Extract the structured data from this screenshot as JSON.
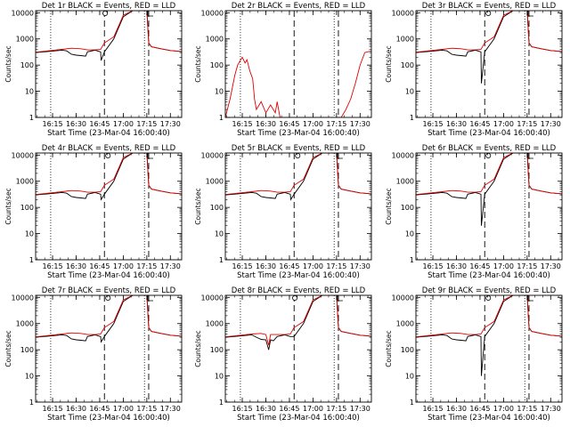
{
  "figure": {
    "panel_title_suffix": " BLACK = Events, RED = LLD",
    "xlabel": "Start Time (23-Mar-04 16:00:40)",
    "ylabel": "Counts/sec",
    "colors": {
      "events": "#000000",
      "lld": "#e00000",
      "background": "#ffffff"
    }
  },
  "chart_data": {
    "type": "line",
    "yscale": "log",
    "ylim": [
      1,
      12000
    ],
    "xlim": [
      16.07,
      17.62
    ],
    "yticks": [
      1,
      10,
      100,
      1000,
      10000
    ],
    "ytick_labels": [
      "1",
      "10",
      "100",
      "1000",
      "10000"
    ],
    "xticks": [
      16.25,
      16.5,
      16.75,
      17.0,
      17.25,
      17.5
    ],
    "xtick_labels": [
      "16:15",
      "16:30",
      "16:45",
      "17:00",
      "17:15",
      "17:30"
    ],
    "dotted_lines_x": [
      16.23,
      17.225
    ],
    "dashed_lines_x": [
      16.8,
      17.27
    ],
    "legend": [
      "Events",
      "LLD"
    ],
    "panels": [
      {
        "label": "Det 1r",
        "gap_marks": [
          16.77,
          17.26
        ],
        "series": [
          {
            "name": "Events",
            "x": [
              16.07,
              16.2,
              16.35,
              16.4,
              16.45,
              16.5,
              16.55,
              16.6,
              16.62,
              16.7,
              16.76,
              16.765,
              16.8,
              16.9,
              17.0,
              17.1,
              17.25,
              17.27,
              17.3,
              17.4,
              17.5,
              17.62
            ],
            "y": [
              300,
              330,
              370,
              350,
              260,
              240,
              230,
              220,
              320,
              370,
              320,
              150,
              320,
              1000,
              7000,
              12000,
              12000,
              700,
              500,
              420,
              360,
              330
            ]
          },
          {
            "name": "LLD",
            "x": [
              16.07,
              16.2,
              16.35,
              16.45,
              16.55,
              16.62,
              16.7,
              16.76,
              16.8,
              16.9,
              17.0,
              17.1,
              17.25,
              17.27,
              17.3,
              17.4,
              17.5,
              17.62
            ],
            "y": [
              310,
              350,
              400,
              440,
              420,
              380,
              380,
              400,
              700,
              1200,
              8000,
              12000,
              12000,
              700,
              500,
              420,
              360,
              330
            ]
          }
        ]
      },
      {
        "label": "Det 2r",
        "gap_marks": [],
        "series": [
          {
            "name": "LLD",
            "x": [
              16.07,
              16.12,
              16.17,
              16.2,
              16.25,
              16.28,
              16.3,
              16.33,
              16.36,
              16.38,
              16.4,
              16.45,
              16.5,
              16.55,
              16.6,
              16.62,
              16.65,
              16.7,
              17.3,
              17.35,
              17.4,
              17.45,
              17.5,
              17.55,
              17.62
            ],
            "y": [
              1,
              5,
              40,
              100,
              200,
              120,
              160,
              60,
              30,
              5,
              2,
              4,
              1.5,
              3,
              1.5,
              4,
              1,
              1,
              1,
              2,
              5,
              20,
              100,
              300,
              350
            ]
          }
        ]
      },
      {
        "label": "Det 3r",
        "gap_marks": [
          16.8,
          17.26
        ],
        "series": [
          {
            "name": "Events",
            "x": [
              16.07,
              16.2,
              16.35,
              16.4,
              16.45,
              16.5,
              16.55,
              16.6,
              16.62,
              16.7,
              16.76,
              16.765,
              16.8,
              16.9,
              17.0,
              17.1,
              17.25,
              17.27,
              17.3,
              17.4,
              17.5,
              17.62
            ],
            "y": [
              300,
              330,
              370,
              350,
              260,
              240,
              230,
              220,
              320,
              370,
              320,
              20,
              320,
              1000,
              7000,
              12000,
              12000,
              700,
              500,
              420,
              360,
              330
            ]
          },
          {
            "name": "LLD",
            "x": [
              16.07,
              16.2,
              16.35,
              16.45,
              16.55,
              16.62,
              16.7,
              16.76,
              16.8,
              16.9,
              17.0,
              17.1,
              17.25,
              17.27,
              17.3,
              17.4,
              17.5,
              17.62
            ],
            "y": [
              310,
              350,
              400,
              440,
              420,
              380,
              380,
              400,
              700,
              1200,
              8000,
              12000,
              12000,
              700,
              500,
              420,
              360,
              330
            ]
          }
        ]
      },
      {
        "label": "Det 4r",
        "gap_marks": [
          16.8,
          17.26
        ],
        "series": [
          {
            "name": "Events",
            "x": [
              16.07,
              16.2,
              16.35,
              16.4,
              16.45,
              16.5,
              16.55,
              16.6,
              16.62,
              16.7,
              16.76,
              16.765,
              16.8,
              16.9,
              17.0,
              17.1,
              17.25,
              17.27,
              17.3,
              17.4,
              17.5,
              17.62
            ],
            "y": [
              300,
              330,
              370,
              350,
              260,
              240,
              230,
              220,
              320,
              370,
              320,
              200,
              320,
              1000,
              7000,
              12000,
              12000,
              700,
              500,
              420,
              360,
              330
            ]
          },
          {
            "name": "LLD",
            "x": [
              16.07,
              16.2,
              16.35,
              16.45,
              16.55,
              16.62,
              16.7,
              16.76,
              16.8,
              16.9,
              17.0,
              17.1,
              17.25,
              17.27,
              17.3,
              17.4,
              17.5,
              17.62
            ],
            "y": [
              310,
              350,
              400,
              440,
              420,
              380,
              380,
              400,
              700,
              1200,
              8000,
              12000,
              12000,
              700,
              500,
              420,
              360,
              330
            ]
          }
        ]
      },
      {
        "label": "Det 5r",
        "gap_marks": [
          16.8,
          17.26
        ],
        "series": [
          {
            "name": "Events",
            "x": [
              16.07,
              16.2,
              16.35,
              16.4,
              16.45,
              16.5,
              16.55,
              16.6,
              16.62,
              16.7,
              16.76,
              16.765,
              16.8,
              16.9,
              17.0,
              17.1,
              17.25,
              17.27,
              17.3,
              17.4,
              17.5,
              17.62
            ],
            "y": [
              300,
              330,
              370,
              350,
              260,
              240,
              230,
              220,
              320,
              370,
              320,
              200,
              320,
              1000,
              7000,
              12000,
              12000,
              700,
              500,
              420,
              360,
              330
            ]
          },
          {
            "name": "LLD",
            "x": [
              16.07,
              16.2,
              16.35,
              16.45,
              16.55,
              16.62,
              16.7,
              16.76,
              16.8,
              16.9,
              17.0,
              17.1,
              17.25,
              17.27,
              17.3,
              17.4,
              17.5,
              17.62
            ],
            "y": [
              310,
              350,
              400,
              440,
              420,
              380,
              380,
              400,
              700,
              1200,
              8000,
              12000,
              12000,
              700,
              500,
              420,
              360,
              330
            ]
          }
        ]
      },
      {
        "label": "Det 6r",
        "gap_marks": [
          16.8,
          17.26
        ],
        "series": [
          {
            "name": "Events",
            "x": [
              16.07,
              16.2,
              16.35,
              16.4,
              16.45,
              16.5,
              16.55,
              16.6,
              16.62,
              16.7,
              16.76,
              16.765,
              16.8,
              16.9,
              17.0,
              17.1,
              17.25,
              17.27,
              17.3,
              17.4,
              17.5,
              17.62
            ],
            "y": [
              300,
              330,
              370,
              350,
              260,
              240,
              230,
              220,
              320,
              370,
              320,
              20,
              320,
              1000,
              7000,
              12000,
              12000,
              700,
              500,
              420,
              360,
              330
            ]
          },
          {
            "name": "LLD",
            "x": [
              16.07,
              16.2,
              16.35,
              16.45,
              16.55,
              16.62,
              16.7,
              16.76,
              16.8,
              16.9,
              17.0,
              17.1,
              17.25,
              17.27,
              17.3,
              17.4,
              17.5,
              17.62
            ],
            "y": [
              310,
              350,
              400,
              440,
              420,
              380,
              380,
              400,
              700,
              1200,
              8000,
              12000,
              12000,
              700,
              500,
              420,
              360,
              330
            ]
          }
        ]
      },
      {
        "label": "Det 7r",
        "gap_marks": [
          16.8,
          17.26
        ],
        "series": [
          {
            "name": "Events",
            "x": [
              16.07,
              16.2,
              16.35,
              16.4,
              16.45,
              16.5,
              16.55,
              16.6,
              16.62,
              16.7,
              16.76,
              16.765,
              16.8,
              16.9,
              17.0,
              17.1,
              17.25,
              17.27,
              17.3,
              17.4,
              17.5,
              17.62
            ],
            "y": [
              300,
              330,
              370,
              350,
              260,
              240,
              230,
              220,
              320,
              370,
              320,
              200,
              320,
              1000,
              7000,
              12000,
              12000,
              700,
              500,
              420,
              360,
              330
            ]
          },
          {
            "name": "LLD",
            "x": [
              16.07,
              16.2,
              16.35,
              16.45,
              16.55,
              16.62,
              16.7,
              16.76,
              16.8,
              16.9,
              17.0,
              17.1,
              17.25,
              17.27,
              17.3,
              17.4,
              17.5,
              17.62
            ],
            "y": [
              310,
              350,
              400,
              440,
              420,
              380,
              380,
              400,
              700,
              1200,
              8000,
              12000,
              12000,
              700,
              500,
              420,
              360,
              330
            ]
          }
        ]
      },
      {
        "label": "Det 8r",
        "gap_marks": [
          16.77,
          17.26
        ],
        "series": [
          {
            "name": "Events",
            "x": [
              16.07,
              16.2,
              16.35,
              16.4,
              16.45,
              16.5,
              16.53,
              16.55,
              16.58,
              16.62,
              16.7,
              16.76,
              16.8,
              16.9,
              17.0,
              17.1,
              17.25,
              17.27,
              17.3,
              17.4,
              17.5,
              17.62
            ],
            "y": [
              300,
              330,
              370,
              300,
              250,
              240,
              100,
              240,
              220,
              320,
              370,
              320,
              320,
              1000,
              7000,
              12000,
              12000,
              700,
              500,
              420,
              360,
              330
            ]
          },
          {
            "name": "LLD",
            "x": [
              16.07,
              16.2,
              16.35,
              16.45,
              16.5,
              16.53,
              16.55,
              16.62,
              16.7,
              16.76,
              16.8,
              16.9,
              17.0,
              17.1,
              17.25,
              17.27,
              17.3,
              17.4,
              17.5,
              17.62
            ],
            "y": [
              310,
              350,
              400,
              420,
              380,
              150,
              380,
              380,
              380,
              400,
              700,
              1200,
              8000,
              12000,
              12000,
              700,
              500,
              420,
              360,
              330
            ]
          }
        ]
      },
      {
        "label": "Det 9r",
        "gap_marks": [
          16.8,
          17.26
        ],
        "series": [
          {
            "name": "Events",
            "x": [
              16.07,
              16.2,
              16.35,
              16.4,
              16.45,
              16.5,
              16.55,
              16.6,
              16.62,
              16.7,
              16.76,
              16.765,
              16.8,
              16.9,
              17.0,
              17.1,
              17.25,
              17.27,
              17.3,
              17.4,
              17.5,
              17.62
            ],
            "y": [
              300,
              330,
              370,
              350,
              260,
              240,
              230,
              220,
              320,
              370,
              320,
              10,
              320,
              1000,
              7000,
              12000,
              12000,
              700,
              500,
              420,
              360,
              330
            ]
          },
          {
            "name": "LLD",
            "x": [
              16.07,
              16.2,
              16.35,
              16.45,
              16.55,
              16.62,
              16.7,
              16.76,
              16.8,
              16.9,
              17.0,
              17.1,
              17.25,
              17.27,
              17.3,
              17.4,
              17.5,
              17.62
            ],
            "y": [
              310,
              350,
              400,
              440,
              420,
              380,
              380,
              400,
              700,
              1200,
              8000,
              12000,
              12000,
              700,
              500,
              420,
              360,
              330
            ]
          }
        ]
      }
    ]
  }
}
